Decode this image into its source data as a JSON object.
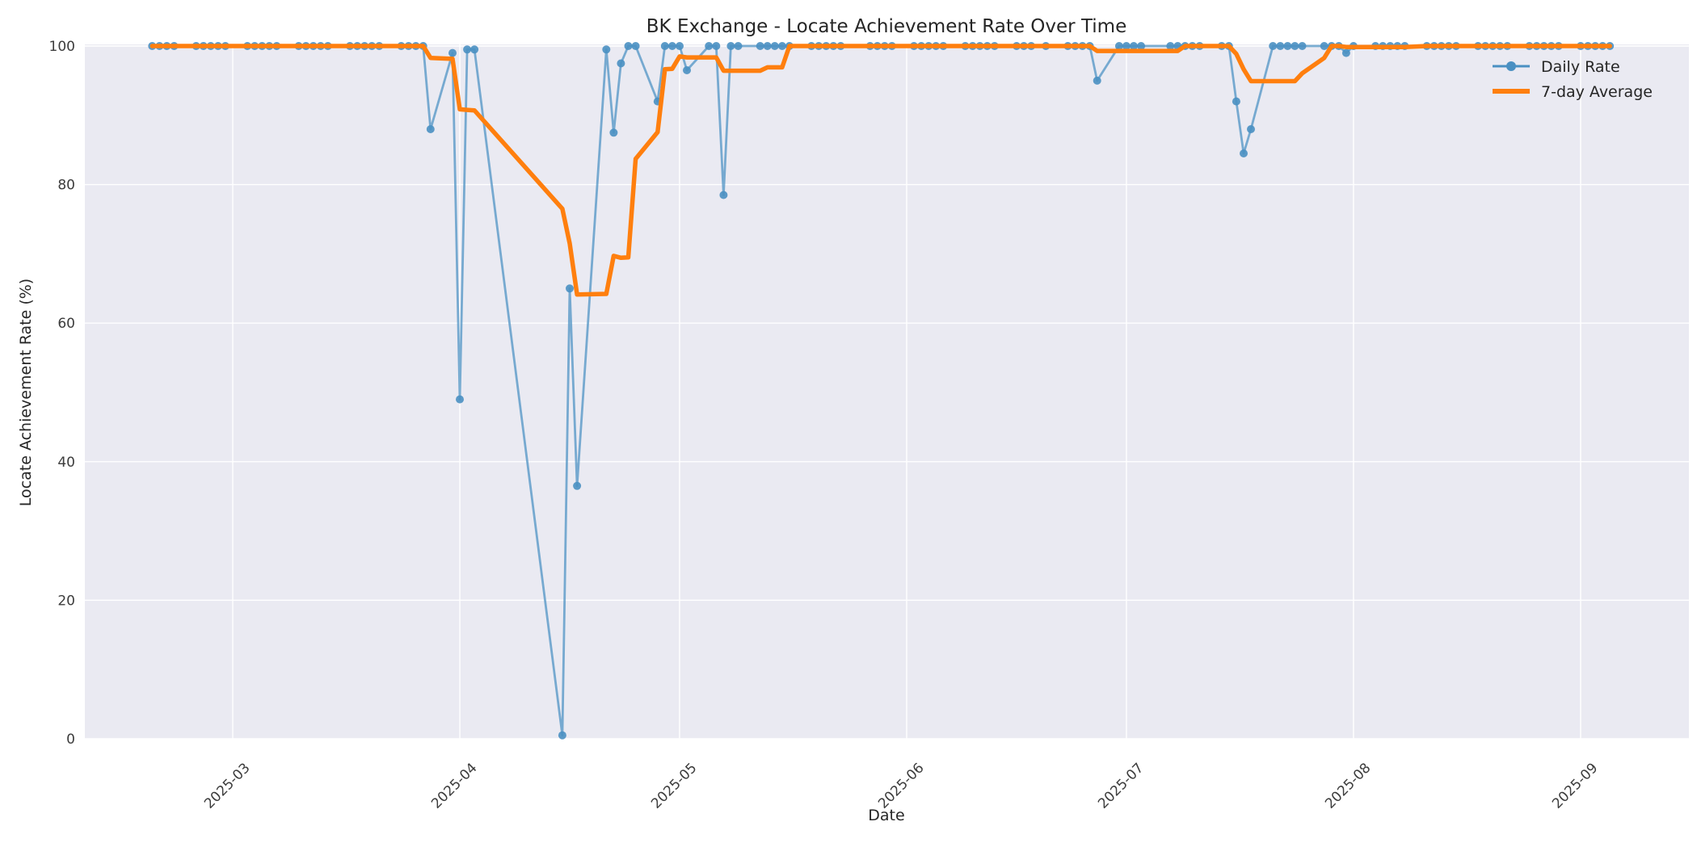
{
  "figure": {
    "background": "#ffffff",
    "plot_background": "#eaeaf2",
    "grid_color": "#ffffff"
  },
  "chart_data": {
    "type": "line",
    "title": "BK Exchange - Locate Achievement Rate Over Time",
    "xlabel": "Date",
    "ylabel": "Locate Achievement Rate (%)",
    "x_tick_labels": [
      "2025-03",
      "2025-04",
      "2025-05",
      "2025-06",
      "2025-07",
      "2025-08",
      "2025-09"
    ],
    "y_tick_labels": [
      0,
      20,
      40,
      60,
      80,
      100
    ],
    "ylim": [
      0,
      100.6
    ],
    "grid": true,
    "legend": {
      "position": "upper-right",
      "frame": false
    },
    "series": [
      {
        "name": "Daily Rate",
        "color": "#4a90c2",
        "line_alpha": 0.72,
        "marker": "circle",
        "points": [
          [
            "2025-02-18",
            100
          ],
          [
            "2025-02-19",
            100
          ],
          [
            "2025-02-20",
            100
          ],
          [
            "2025-02-21",
            100
          ],
          [
            "2025-02-24",
            100
          ],
          [
            "2025-02-25",
            100
          ],
          [
            "2025-02-26",
            100
          ],
          [
            "2025-02-27",
            100
          ],
          [
            "2025-02-28",
            100
          ],
          [
            "2025-03-03",
            100
          ],
          [
            "2025-03-04",
            100
          ],
          [
            "2025-03-05",
            100
          ],
          [
            "2025-03-06",
            100
          ],
          [
            "2025-03-07",
            100
          ],
          [
            "2025-03-10",
            100
          ],
          [
            "2025-03-11",
            100
          ],
          [
            "2025-03-12",
            100
          ],
          [
            "2025-03-13",
            100
          ],
          [
            "2025-03-14",
            100
          ],
          [
            "2025-03-17",
            100
          ],
          [
            "2025-03-18",
            100
          ],
          [
            "2025-03-19",
            100
          ],
          [
            "2025-03-20",
            100
          ],
          [
            "2025-03-21",
            100
          ],
          [
            "2025-03-24",
            100
          ],
          [
            "2025-03-25",
            100
          ],
          [
            "2025-03-26",
            100
          ],
          [
            "2025-03-27",
            100
          ],
          [
            "2025-03-28",
            88
          ],
          [
            "2025-03-31",
            99
          ],
          [
            "2025-04-01",
            49
          ],
          [
            "2025-04-02",
            99.5
          ],
          [
            "2025-04-03",
            99.5
          ],
          [
            "2025-04-15",
            0.5
          ],
          [
            "2025-04-16",
            65
          ],
          [
            "2025-04-17",
            36.5
          ],
          [
            "2025-04-21",
            99.5
          ],
          [
            "2025-04-22",
            87.5
          ],
          [
            "2025-04-23",
            97.5
          ],
          [
            "2025-04-24",
            100
          ],
          [
            "2025-04-25",
            100
          ],
          [
            "2025-04-28",
            92
          ],
          [
            "2025-04-29",
            100
          ],
          [
            "2025-04-30",
            100
          ],
          [
            "2025-05-01",
            100
          ],
          [
            "2025-05-02",
            96.5
          ],
          [
            "2025-05-05",
            100
          ],
          [
            "2025-05-06",
            100
          ],
          [
            "2025-05-07",
            78.5
          ],
          [
            "2025-05-08",
            100
          ],
          [
            "2025-05-09",
            100
          ],
          [
            "2025-05-12",
            100
          ],
          [
            "2025-05-13",
            100
          ],
          [
            "2025-05-14",
            100
          ],
          [
            "2025-05-15",
            100
          ],
          [
            "2025-05-16",
            100
          ],
          [
            "2025-05-19",
            100
          ],
          [
            "2025-05-20",
            100
          ],
          [
            "2025-05-21",
            100
          ],
          [
            "2025-05-22",
            100
          ],
          [
            "2025-05-23",
            100
          ],
          [
            "2025-05-27",
            100
          ],
          [
            "2025-05-28",
            100
          ],
          [
            "2025-05-29",
            100
          ],
          [
            "2025-05-30",
            100
          ],
          [
            "2025-06-02",
            100
          ],
          [
            "2025-06-03",
            100
          ],
          [
            "2025-06-04",
            100
          ],
          [
            "2025-06-05",
            100
          ],
          [
            "2025-06-06",
            100
          ],
          [
            "2025-06-09",
            100
          ],
          [
            "2025-06-10",
            100
          ],
          [
            "2025-06-11",
            100
          ],
          [
            "2025-06-12",
            100
          ],
          [
            "2025-06-13",
            100
          ],
          [
            "2025-06-16",
            100
          ],
          [
            "2025-06-17",
            100
          ],
          [
            "2025-06-18",
            100
          ],
          [
            "2025-06-20",
            100
          ],
          [
            "2025-06-23",
            100
          ],
          [
            "2025-06-24",
            100
          ],
          [
            "2025-06-25",
            100
          ],
          [
            "2025-06-26",
            100
          ],
          [
            "2025-06-27",
            95
          ],
          [
            "2025-06-30",
            100
          ],
          [
            "2025-07-01",
            100
          ],
          [
            "2025-07-02",
            100
          ],
          [
            "2025-07-03",
            100
          ],
          [
            "2025-07-07",
            100
          ],
          [
            "2025-07-08",
            100
          ],
          [
            "2025-07-09",
            100
          ],
          [
            "2025-07-10",
            100
          ],
          [
            "2025-07-11",
            100
          ],
          [
            "2025-07-14",
            100
          ],
          [
            "2025-07-15",
            100
          ],
          [
            "2025-07-16",
            92
          ],
          [
            "2025-07-17",
            84.5
          ],
          [
            "2025-07-18",
            88
          ],
          [
            "2025-07-21",
            100
          ],
          [
            "2025-07-22",
            100
          ],
          [
            "2025-07-23",
            100
          ],
          [
            "2025-07-24",
            100
          ],
          [
            "2025-07-25",
            100
          ],
          [
            "2025-07-28",
            100
          ],
          [
            "2025-07-29",
            100
          ],
          [
            "2025-07-30",
            100
          ],
          [
            "2025-07-31",
            99
          ],
          [
            "2025-08-01",
            100
          ],
          [
            "2025-08-04",
            100
          ],
          [
            "2025-08-05",
            100
          ],
          [
            "2025-08-06",
            100
          ],
          [
            "2025-08-07",
            100
          ],
          [
            "2025-08-08",
            100
          ],
          [
            "2025-08-11",
            100
          ],
          [
            "2025-08-12",
            100
          ],
          [
            "2025-08-13",
            100
          ],
          [
            "2025-08-14",
            100
          ],
          [
            "2025-08-15",
            100
          ],
          [
            "2025-08-18",
            100
          ],
          [
            "2025-08-19",
            100
          ],
          [
            "2025-08-20",
            100
          ],
          [
            "2025-08-21",
            100
          ],
          [
            "2025-08-22",
            100
          ],
          [
            "2025-08-25",
            100
          ],
          [
            "2025-08-26",
            100
          ],
          [
            "2025-08-27",
            100
          ],
          [
            "2025-08-28",
            100
          ],
          [
            "2025-08-29",
            100
          ],
          [
            "2025-09-01",
            100
          ],
          [
            "2025-09-02",
            100
          ],
          [
            "2025-09-03",
            100
          ],
          [
            "2025-09-04",
            100
          ],
          [
            "2025-09-05",
            100
          ]
        ]
      },
      {
        "name": "7-day Average",
        "color": "#ff7f0e",
        "line_width": 5.5,
        "derivation": "trailing mean of the 7 most recent daily points (min_periods=1)",
        "window": 7
      }
    ]
  }
}
